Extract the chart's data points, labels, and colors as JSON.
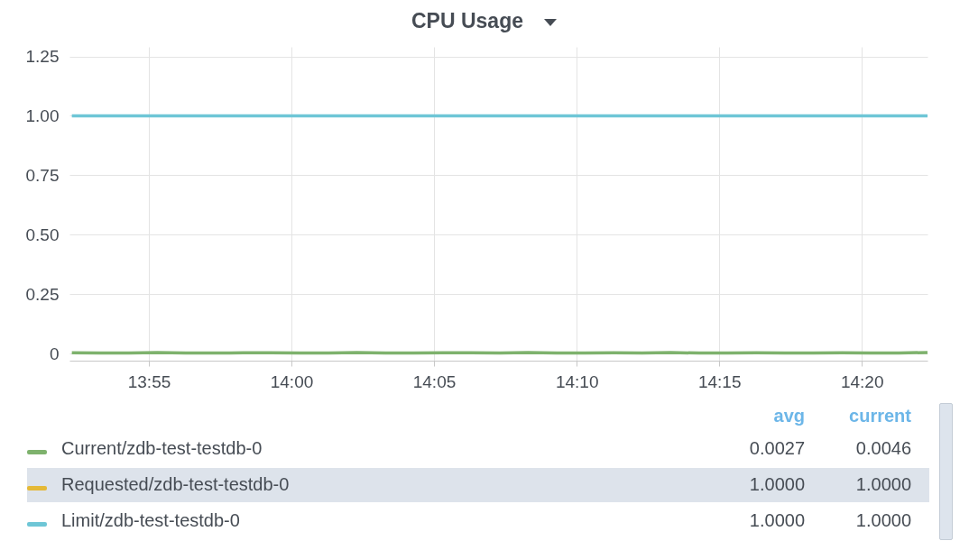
{
  "chart_data": {
    "type": "line",
    "title": "CPU Usage",
    "legend": "bottom",
    "grid": true,
    "line_style": "solid",
    "x": [
      13.8717,
      13.8883,
      13.905,
      13.9217,
      13.9383,
      13.955,
      13.9717,
      13.9883,
      14.005,
      14.0217,
      14.0383,
      14.055,
      14.0717,
      14.0883,
      14.105,
      14.1217,
      14.1383,
      14.155,
      14.1717,
      14.1883,
      14.205,
      14.2217,
      14.2383,
      14.255,
      14.2717,
      14.2883,
      14.305,
      14.3217,
      14.3383,
      14.355,
      14.3717
    ],
    "series": [
      {
        "name": "Current/zdb-test-testdb-0",
        "color": "#7eb26d",
        "values": [
          0.003,
          0.002,
          0.002,
          0.004,
          0.002,
          0.002,
          0.003,
          0.003,
          0.002,
          0.002,
          0.004,
          0.002,
          0.002,
          0.003,
          0.003,
          0.002,
          0.004,
          0.002,
          0.002,
          0.003,
          0.002,
          0.004,
          0.002,
          0.002,
          0.003,
          0.002,
          0.002,
          0.003,
          0.002,
          0.002,
          0.0046
        ]
      },
      {
        "name": "Requested/zdb-test-testdb-0",
        "color": "#e5b937",
        "values": [
          null,
          null,
          null,
          null,
          null,
          null,
          null,
          null,
          null,
          null,
          null,
          null,
          null,
          null,
          null,
          null,
          null,
          null,
          null,
          null,
          null,
          null,
          null,
          null,
          null,
          null,
          null,
          null,
          null,
          null,
          null
        ]
      },
      {
        "name": "Limit/zdb-test-testdb-0",
        "color": "#6ec6d6",
        "values": [
          1,
          1,
          1,
          1,
          1,
          1,
          1,
          1,
          1,
          1,
          1,
          1,
          1,
          1,
          1,
          1,
          1,
          1,
          1,
          1,
          1,
          1,
          1,
          1,
          1,
          1,
          1,
          1,
          1,
          1,
          1
        ]
      }
    ],
    "xlim": [
      13.8703,
      14.3717
    ],
    "xticks": [
      {
        "value": 13.9167,
        "label": "13:55"
      },
      {
        "value": 14.0,
        "label": "14:00"
      },
      {
        "value": 14.0833,
        "label": "14:05"
      },
      {
        "value": 14.1667,
        "label": "14:10"
      },
      {
        "value": 14.25,
        "label": "14:15"
      },
      {
        "value": 14.3333,
        "label": "14:20"
      }
    ],
    "ylim": [
      -0.03,
      1.29
    ],
    "yticks": [
      0,
      {
        "value": 0.25,
        "label": "0.25"
      },
      {
        "value": 0.5,
        "label": "0.50"
      },
      {
        "value": 0.75,
        "label": "0.75"
      },
      {
        "value": 1,
        "label": "1.00"
      },
      {
        "value": 1.25,
        "label": "1.25"
      }
    ],
    "annotations": [
      "avg",
      "current",
      "0.0027",
      "0.0046",
      "1.0000",
      "1.0000",
      "1.0000",
      "1.0000"
    ]
  }
}
